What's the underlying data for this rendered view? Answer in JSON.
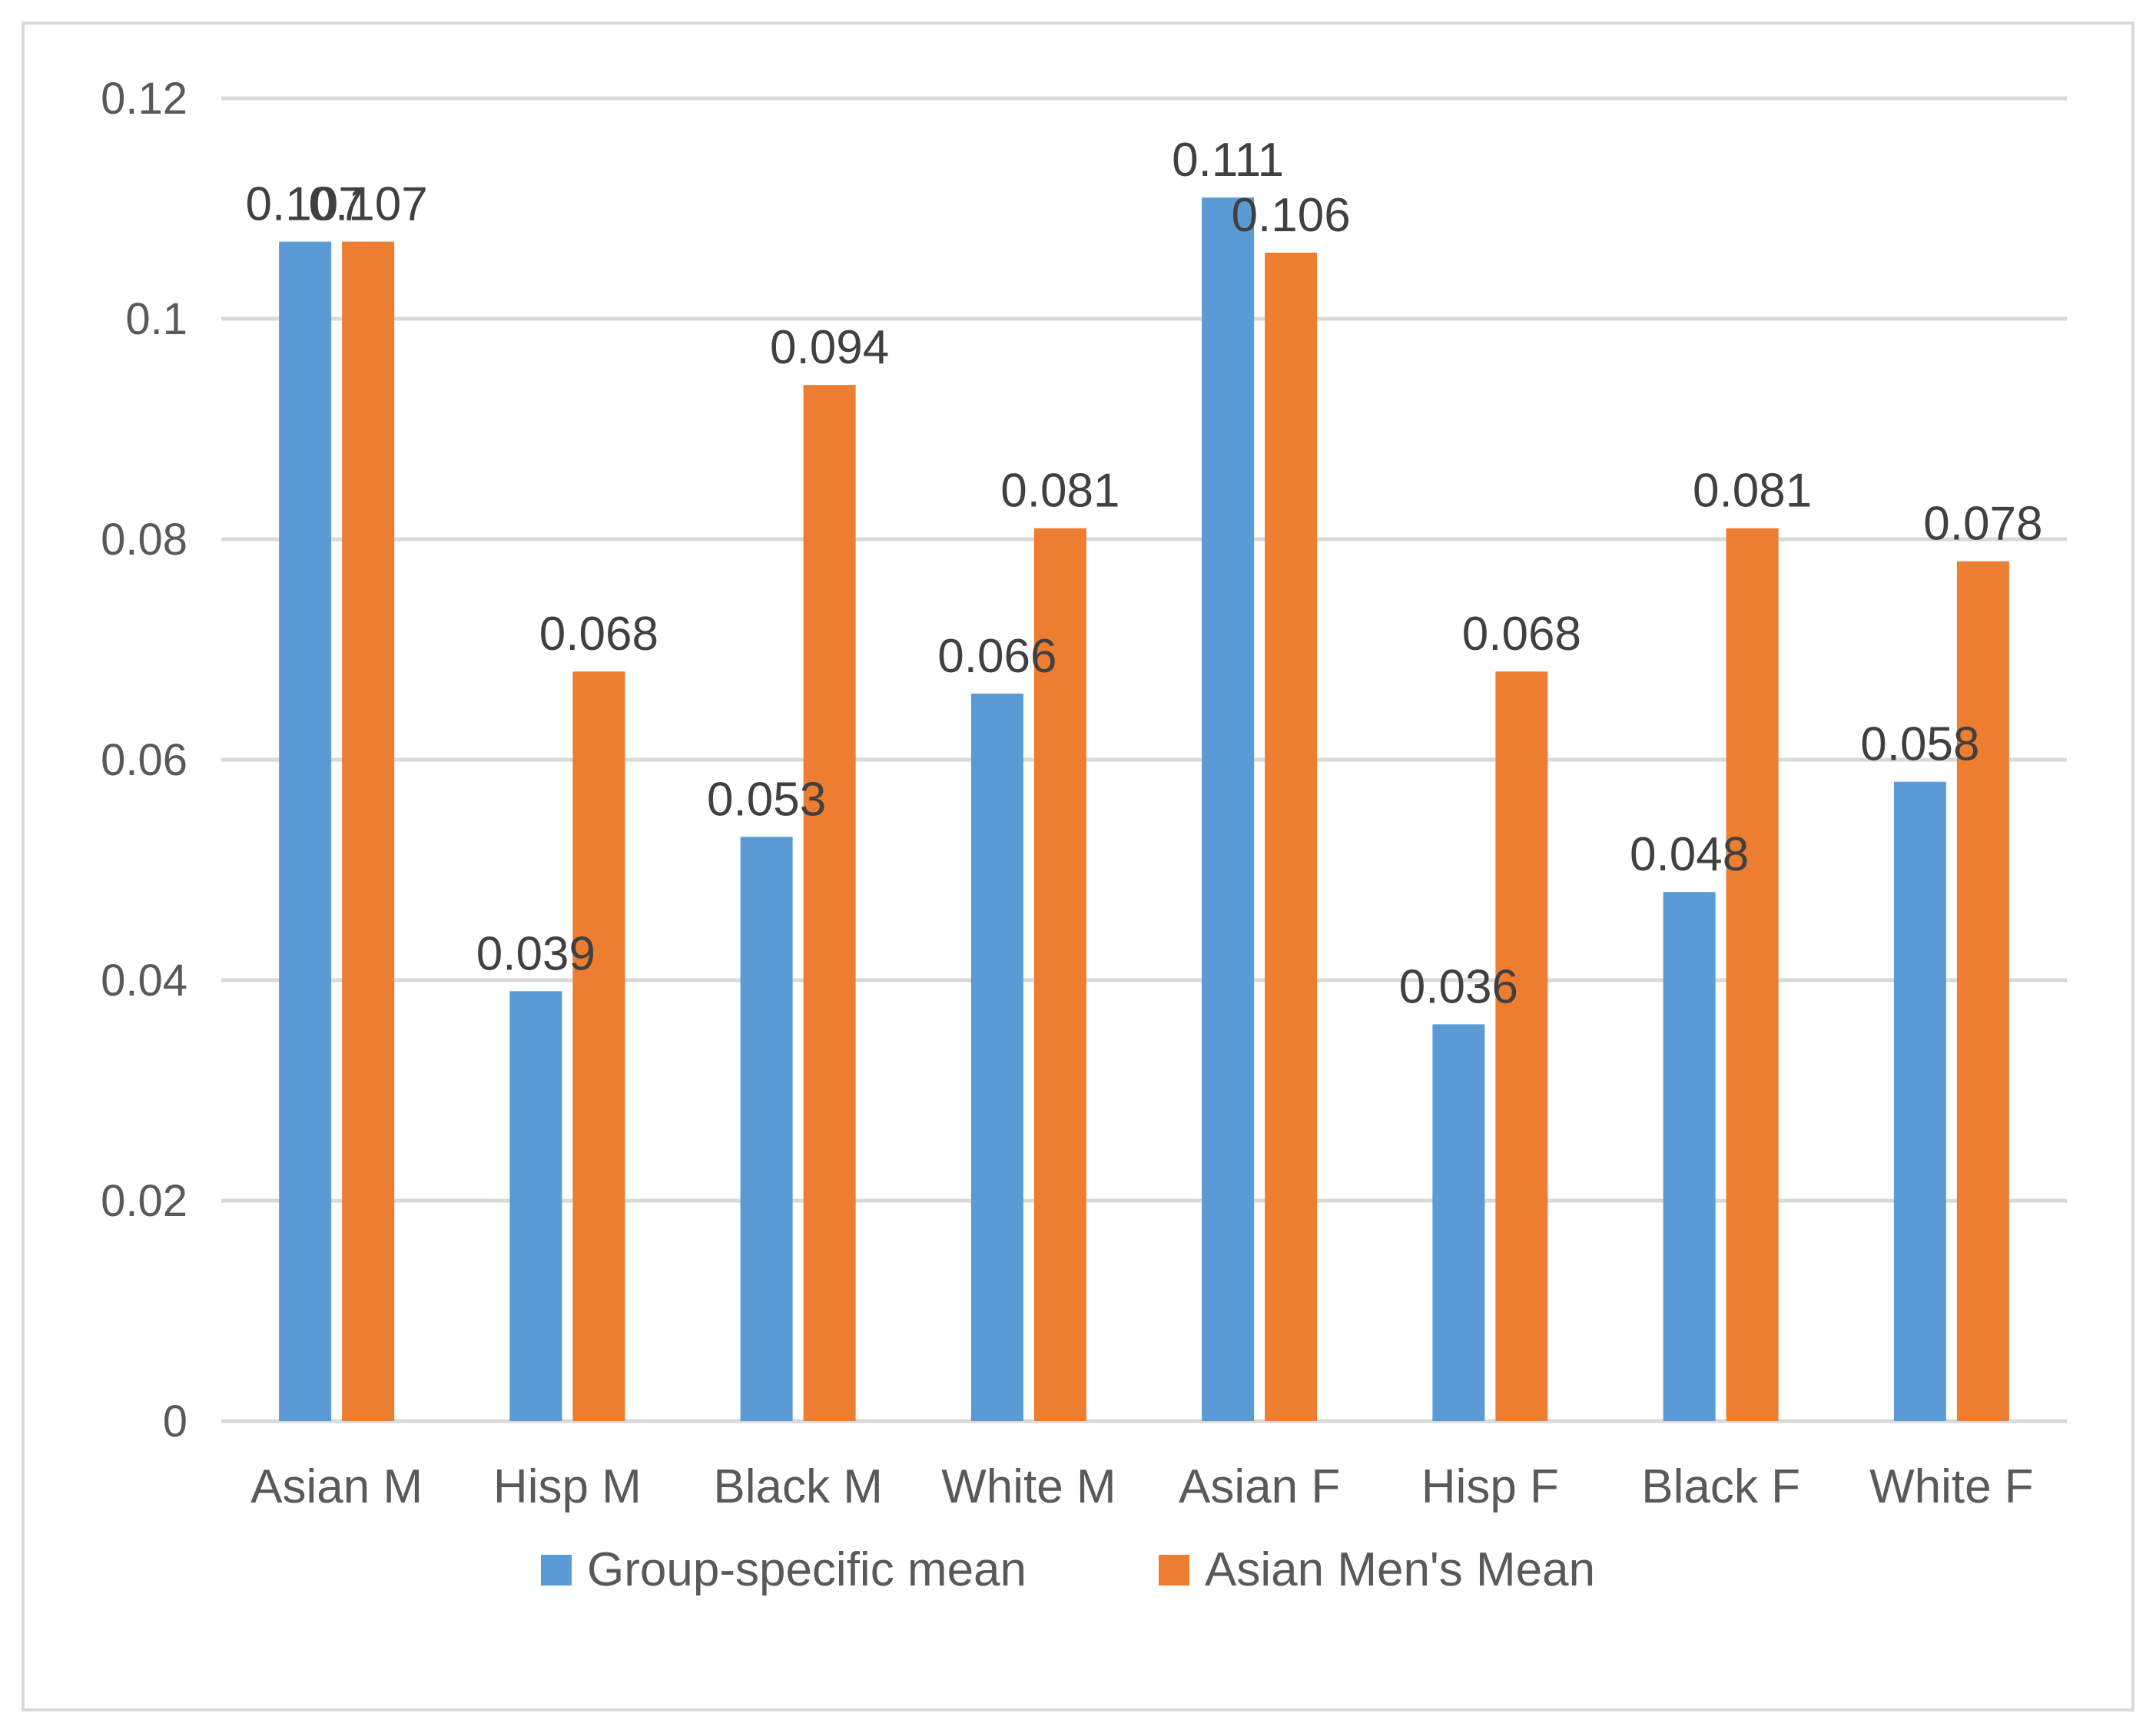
{
  "chart_data": {
    "type": "bar",
    "title": "",
    "xlabel": "",
    "ylabel": "",
    "categories": [
      "Asian M",
      "Hisp M",
      "Black M",
      "White M",
      "Asian F",
      "Hisp F",
      "Black F",
      "White F"
    ],
    "series": [
      {
        "name": "Group-specific mean",
        "color": "#5b9bd5",
        "values": [
          0.107,
          0.039,
          0.053,
          0.066,
          0.111,
          0.036,
          0.048,
          0.058
        ],
        "labels": [
          "0.107",
          "0.039",
          "0.053",
          "0.066",
          "0.111",
          "0.036",
          "0.048",
          "0.058"
        ]
      },
      {
        "name": "Asian Men's Mean",
        "color": "#ed7d31",
        "values": [
          0.107,
          0.068,
          0.094,
          0.081,
          0.106,
          0.068,
          0.081,
          0.078
        ],
        "labels": [
          "0.107",
          "0.068",
          "0.094",
          "0.081",
          "0.106",
          "0.068",
          "0.081",
          "0.078"
        ]
      }
    ],
    "ylim": [
      0,
      0.12
    ],
    "yticks": [
      0,
      0.02,
      0.04,
      0.06,
      0.08,
      0.1,
      0.12
    ],
    "ytick_labels": [
      "0",
      "0.02",
      "0.04",
      "0.06",
      "0.08",
      "0.1",
      "0.12"
    ],
    "grid": true,
    "legend_position": "bottom"
  }
}
